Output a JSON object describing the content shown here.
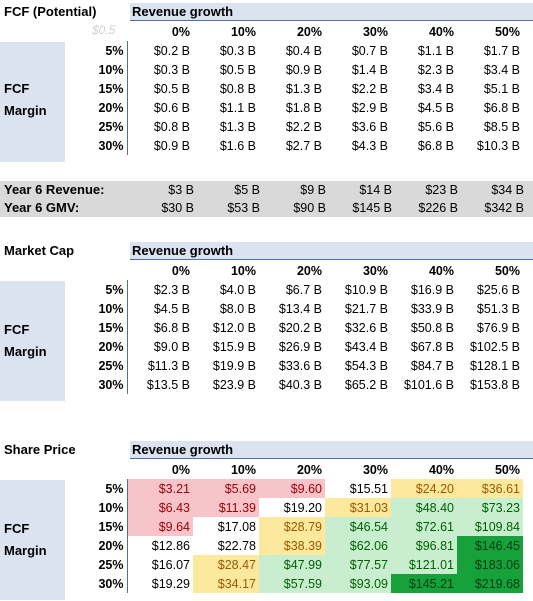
{
  "col_header": "Revenue growth",
  "growth_cols": [
    "0%",
    "10%",
    "20%",
    "30%",
    "40%",
    "50%"
  ],
  "margin_rows": [
    "5%",
    "10%",
    "15%",
    "20%",
    "25%",
    "30%"
  ],
  "row_label_line1": "FCF",
  "row_label_line2": "Margin",
  "fcf": {
    "title": "FCF (Potential)",
    "ghost": "$0.5",
    "rows": [
      [
        "$0.2 B",
        "$0.3 B",
        "$0.4 B",
        "$0.7 B",
        "$1.1 B",
        "$1.7 B"
      ],
      [
        "$0.3 B",
        "$0.5 B",
        "$0.9 B",
        "$1.4 B",
        "$2.3 B",
        "$3.4 B"
      ],
      [
        "$0.5 B",
        "$0.8 B",
        "$1.3 B",
        "$2.2 B",
        "$3.4 B",
        "$5.1 B"
      ],
      [
        "$0.6 B",
        "$1.1 B",
        "$1.8 B",
        "$2.9 B",
        "$4.5 B",
        "$6.8 B"
      ],
      [
        "$0.8 B",
        "$1.3 B",
        "$2.2 B",
        "$3.6 B",
        "$5.6 B",
        "$8.5 B"
      ],
      [
        "$0.9 B",
        "$1.6 B",
        "$2.7 B",
        "$4.3 B",
        "$6.8 B",
        "$10.3 B"
      ]
    ]
  },
  "summary": {
    "revenue_label": "Year 6 Revenue:",
    "revenue": [
      "$3 B",
      "$5 B",
      "$9 B",
      "$14 B",
      "$23 B",
      "$34 B"
    ],
    "gmv_label": "Year 6 GMV:",
    "gmv": [
      "$30 B",
      "$53 B",
      "$90 B",
      "$145 B",
      "$226 B",
      "$342 B"
    ]
  },
  "market_cap": {
    "title": "Market Cap",
    "rows": [
      [
        "$2.3 B",
        "$4.0 B",
        "$6.7 B",
        "$10.9 B",
        "$16.9 B",
        "$25.6 B"
      ],
      [
        "$4.5 B",
        "$8.0 B",
        "$13.4 B",
        "$21.7 B",
        "$33.9 B",
        "$51.3 B"
      ],
      [
        "$6.8 B",
        "$12.0 B",
        "$20.2 B",
        "$32.6 B",
        "$50.8 B",
        "$76.9 B"
      ],
      [
        "$9.0 B",
        "$15.9 B",
        "$26.9 B",
        "$43.4 B",
        "$67.8 B",
        "$102.5 B"
      ],
      [
        "$11.3 B",
        "$19.9 B",
        "$33.6 B",
        "$54.3 B",
        "$84.7 B",
        "$128.1 B"
      ],
      [
        "$13.5 B",
        "$23.9 B",
        "$40.3 B",
        "$65.2 B",
        "$101.6 B",
        "$153.8 B"
      ]
    ]
  },
  "share_price": {
    "title": "Share Price",
    "rows": [
      [
        "$3.21",
        "$5.69",
        "$9.60",
        "$15.51",
        "$24.20",
        "$36.61"
      ],
      [
        "$6.43",
        "$11.39",
        "$19.20",
        "$31.03",
        "$48.40",
        "$73.23"
      ],
      [
        "$9.64",
        "$17.08",
        "$28.79",
        "$46.54",
        "$72.61",
        "$109.84"
      ],
      [
        "$12.86",
        "$22.78",
        "$38.39",
        "$62.06",
        "$96.81",
        "$146.45"
      ],
      [
        "$16.07",
        "$28.47",
        "$47.99",
        "$77.57",
        "$121.01",
        "$183.06"
      ],
      [
        "$19.29",
        "$34.17",
        "$57.59",
        "$93.09",
        "$145.21",
        "$219.68"
      ]
    ],
    "colors": [
      [
        "red",
        "red",
        "red",
        "white",
        "yellow",
        "yellow"
      ],
      [
        "red",
        "red",
        "white",
        "yellow",
        "lightgreen",
        "lightgreen"
      ],
      [
        "red",
        "white",
        "yellow",
        "lightgreen",
        "lightgreen",
        "lightgreen"
      ],
      [
        "white",
        "white",
        "yellow",
        "lightgreen",
        "lightgreen",
        "darkgreen"
      ],
      [
        "white",
        "yellow",
        "lightgreen",
        "lightgreen",
        "lightgreen",
        "darkgreen"
      ],
      [
        "white",
        "yellow",
        "lightgreen",
        "lightgreen",
        "darkgreen",
        "darkgreen"
      ]
    ],
    "color_map": {
      "red": "#f6c4c9",
      "yellow": "#fde99d",
      "lightgreen": "#c8eecf",
      "darkgreen": "#16a13a",
      "white": "#ffffff"
    }
  }
}
